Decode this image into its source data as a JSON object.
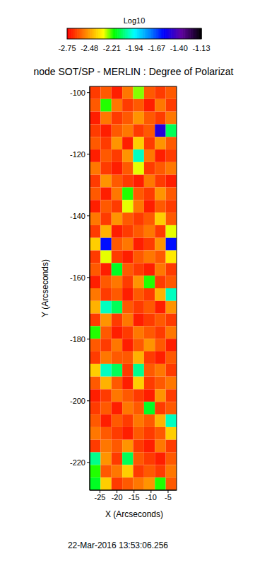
{
  "chart_data": {
    "type": "heatmap",
    "title": "node SOT/SP - MERLIN : Degree of Polarizat",
    "x_label": "X (Arcseconds)",
    "y_label": "Y (Arcseconds)",
    "annotation": "22-Mar-2016 13:53:06.256",
    "xlim": [
      -28,
      -2.5
    ],
    "ylim": [
      -229,
      -98
    ],
    "xticks": [
      -25,
      -20,
      -15,
      -10,
      -5
    ],
    "yticks": [
      -220,
      -200,
      -180,
      -160,
      -140,
      -120,
      -100
    ],
    "color_bar": {
      "title": "Log10",
      "range": [
        -2.75,
        -1.13
      ],
      "ticks": [
        -2.75,
        -2.48,
        -2.21,
        -1.94,
        -1.67,
        {
          "value": -1.4,
          "label": "-1.40"
        },
        -1.13
      ]
    },
    "cells": [
      [
        -2.65,
        -2.6,
        -2.7,
        -2.55,
        -2.25,
        -2.6,
        -2.65,
        -2.6
      ],
      [
        -2.6,
        -2.2,
        -2.55,
        -2.65,
        -2.6,
        -2.7,
        -2.55,
        -2.65
      ],
      [
        -2.7,
        -2.55,
        -2.65,
        -2.6,
        -2.5,
        -2.6,
        -2.65,
        -2.55
      ],
      [
        -2.65,
        -2.7,
        -2.6,
        -2.55,
        -2.65,
        -2.6,
        -1.5,
        -2.1
      ],
      [
        -2.6,
        -2.65,
        -2.5,
        -2.7,
        -2.4,
        -2.65,
        -2.5,
        -2.6
      ],
      [
        -2.7,
        -2.6,
        -2.65,
        -2.5,
        -2.0,
        -2.55,
        -2.7,
        -2.65
      ],
      [
        -2.55,
        -2.65,
        -2.7,
        -2.6,
        -2.3,
        -2.65,
        -2.6,
        -2.55
      ],
      [
        -2.65,
        -2.5,
        -2.6,
        -2.65,
        -2.7,
        -2.55,
        -2.65,
        -2.7
      ],
      [
        -2.6,
        -2.7,
        -2.55,
        -2.2,
        -2.6,
        -2.65,
        -2.5,
        -2.6
      ],
      [
        -2.7,
        -2.6,
        -2.65,
        -2.3,
        -2.55,
        -2.7,
        -2.6,
        -2.65
      ],
      [
        -2.55,
        -2.65,
        -2.5,
        -2.6,
        -2.65,
        -2.6,
        -2.4,
        -2.6
      ],
      [
        -2.65,
        -2.45,
        -2.7,
        -2.65,
        -2.6,
        -2.55,
        -2.65,
        -2.3
      ],
      [
        -2.4,
        -1.6,
        -2.6,
        -2.55,
        -2.7,
        -2.65,
        -2.5,
        -1.6
      ],
      [
        -2.65,
        -2.3,
        -2.65,
        -2.7,
        -2.6,
        -2.55,
        -2.6,
        -2.35
      ],
      [
        -2.6,
        -2.7,
        -2.15,
        -2.6,
        -2.65,
        -2.7,
        -2.55,
        -2.65
      ],
      [
        -2.7,
        -2.6,
        -2.55,
        -2.65,
        -2.5,
        -2.2,
        -2.65,
        -2.6
      ],
      [
        -2.55,
        -2.65,
        -2.6,
        -2.7,
        -2.6,
        -2.65,
        -2.45,
        -2.0
      ],
      [
        -2.45,
        -2.0,
        -2.1,
        -2.6,
        -2.65,
        -2.6,
        -2.7,
        -2.5
      ],
      [
        -2.65,
        -2.5,
        -2.65,
        -2.55,
        -2.7,
        -2.65,
        -2.6,
        -2.65
      ],
      [
        -2.2,
        -2.6,
        -2.7,
        -2.65,
        -2.55,
        -2.6,
        -2.65,
        -2.55
      ],
      [
        -2.6,
        -2.65,
        -2.55,
        -2.7,
        -2.6,
        -2.5,
        -2.6,
        -2.7
      ],
      [
        -2.65,
        -2.55,
        -2.6,
        -2.6,
        -2.45,
        -2.65,
        -2.7,
        -2.6
      ],
      [
        -2.4,
        -2.0,
        -2.1,
        -2.65,
        -2.05,
        -2.6,
        -2.55,
        -2.65
      ],
      [
        -2.6,
        -2.45,
        -2.6,
        -2.7,
        -2.4,
        -2.65,
        -2.6,
        -2.55
      ],
      [
        -2.7,
        -2.65,
        -2.55,
        -2.6,
        -2.65,
        -2.7,
        -2.5,
        -2.65
      ],
      [
        -2.65,
        -2.6,
        -2.7,
        -2.55,
        -2.6,
        -2.15,
        -2.65,
        -2.6
      ],
      [
        -2.6,
        -2.7,
        -2.6,
        -2.65,
        -2.55,
        -2.6,
        -2.45,
        -2.0
      ],
      [
        -2.55,
        -2.6,
        -2.65,
        -2.7,
        -2.6,
        -2.65,
        -2.6,
        -2.4
      ],
      [
        -2.65,
        -2.55,
        -2.6,
        -2.5,
        -2.65,
        -2.7,
        -2.55,
        -2.65
      ],
      [
        -2.05,
        -2.5,
        -2.65,
        -2.1,
        -2.6,
        -2.65,
        -2.7,
        -2.6
      ],
      [
        -2.2,
        -2.6,
        -2.55,
        -2.4,
        -2.65,
        -2.6,
        -2.65,
        -2.55
      ],
      [
        -2.15,
        -2.4,
        -2.65,
        -2.6,
        -2.55,
        -2.5,
        -2.2,
        -2.6
      ]
    ]
  }
}
